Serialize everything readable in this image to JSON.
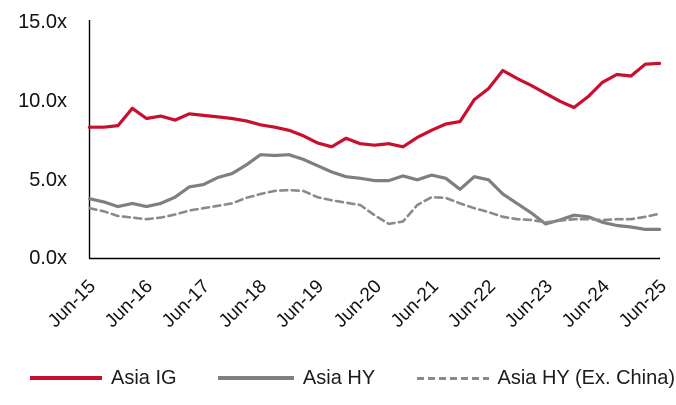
{
  "chart_data": {
    "type": "line",
    "title": "",
    "xlabel": "",
    "ylabel": "",
    "x_labels": [
      "Jun-15",
      "Jun-16",
      "Jun-17",
      "Jun-18",
      "Jun-19",
      "Jun-20",
      "Jun-21",
      "Jun-22",
      "Jun-23",
      "Jun-24",
      "Jun-25"
    ],
    "x_frequency": "quarterly",
    "ylim": [
      0,
      15
    ],
    "yticks": [
      15,
      10,
      5,
      0
    ],
    "ytick_labels": [
      "15.0x",
      "10.0x",
      "5.0x",
      "0.0x"
    ],
    "grid": false,
    "legend_position": "bottom",
    "axis_color": "#000000",
    "series": [
      {
        "name": "Asia IG",
        "color": "#c8102e",
        "style": "solid",
        "values": [
          8.35,
          8.35,
          8.45,
          9.55,
          8.9,
          9.05,
          8.8,
          9.2,
          9.1,
          9.0,
          8.9,
          8.75,
          8.5,
          8.35,
          8.15,
          7.8,
          7.35,
          7.1,
          7.65,
          7.3,
          7.2,
          7.3,
          7.1,
          7.7,
          8.15,
          8.55,
          8.7,
          10.1,
          10.8,
          11.95,
          11.45,
          11.0,
          10.5,
          10.0,
          9.6,
          10.3,
          11.2,
          11.7,
          11.6,
          12.35,
          12.4
        ]
      },
      {
        "name": "Asia HY",
        "color": "#7f7f7f",
        "style": "solid",
        "values": [
          3.8,
          3.6,
          3.3,
          3.5,
          3.3,
          3.5,
          3.9,
          4.55,
          4.7,
          5.15,
          5.4,
          5.95,
          6.6,
          6.55,
          6.6,
          6.3,
          5.9,
          5.5,
          5.2,
          5.1,
          4.95,
          4.95,
          5.25,
          5.0,
          5.3,
          5.1,
          4.4,
          5.2,
          5.0,
          4.1,
          3.5,
          2.9,
          2.2,
          2.45,
          2.75,
          2.65,
          2.3,
          2.1,
          2.0,
          1.85,
          1.85
        ]
      },
      {
        "name": "Asia HY (Ex. China)",
        "color": "#8a8a8a",
        "style": "dashed",
        "values": [
          3.2,
          3.0,
          2.7,
          2.6,
          2.5,
          2.6,
          2.8,
          3.05,
          3.2,
          3.35,
          3.5,
          3.85,
          4.1,
          4.3,
          4.35,
          4.3,
          3.9,
          3.7,
          3.55,
          3.4,
          2.75,
          2.2,
          2.35,
          3.4,
          3.9,
          3.85,
          3.5,
          3.2,
          2.95,
          2.65,
          2.5,
          2.45,
          2.3,
          2.4,
          2.5,
          2.5,
          2.45,
          2.5,
          2.5,
          2.65,
          2.85
        ]
      }
    ]
  }
}
